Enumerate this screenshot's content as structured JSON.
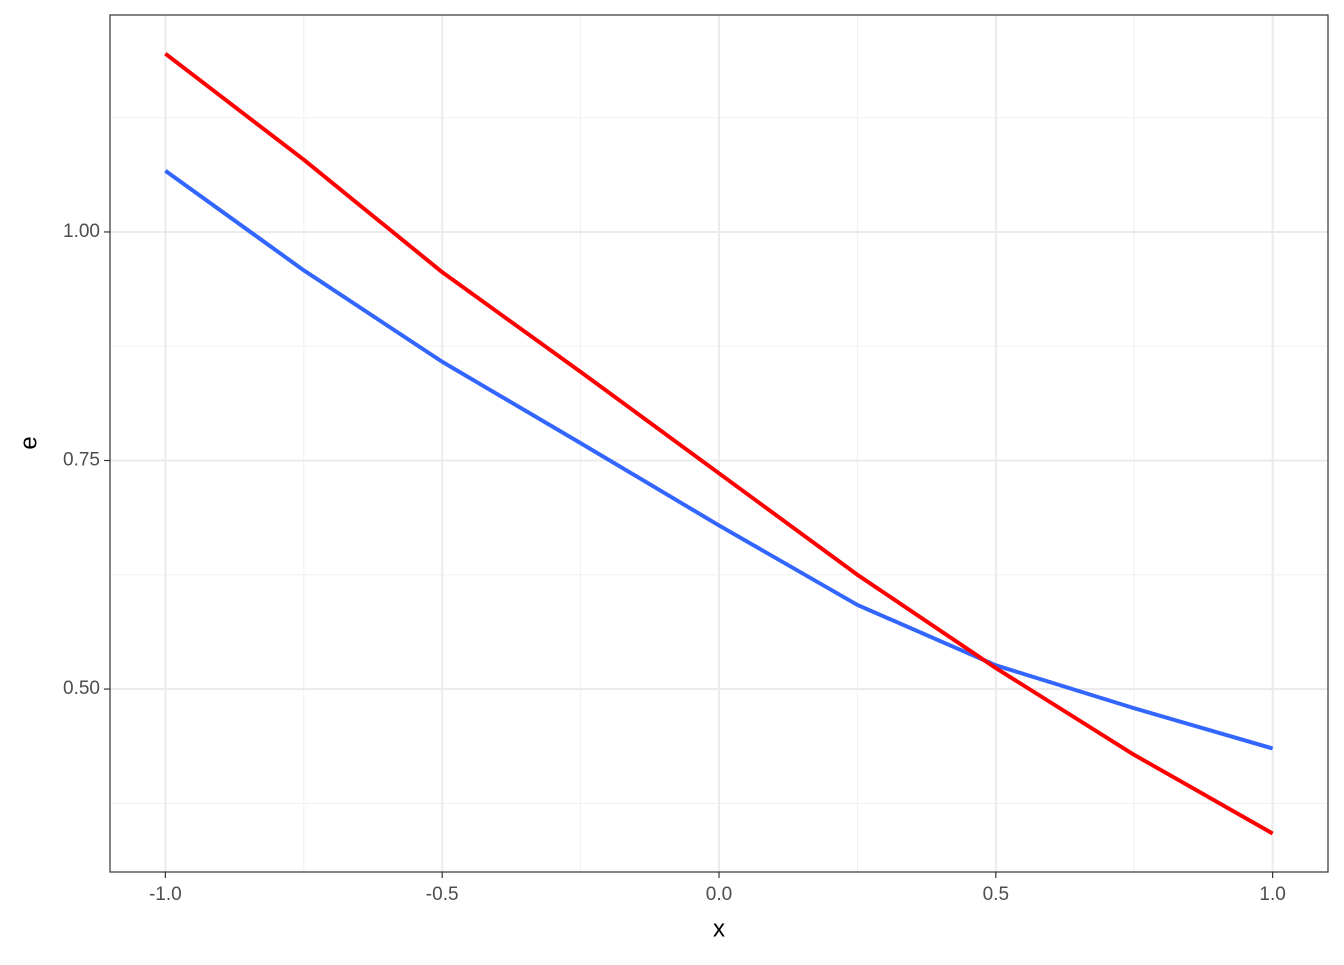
{
  "chart_data": {
    "type": "line",
    "x_label": "x",
    "y_label": "e",
    "x": [
      -1,
      -0.75,
      -0.5,
      -0.25,
      0,
      0.25,
      0.5,
      0.75,
      1
    ],
    "series": [
      {
        "color": "#3366ff",
        "values": [
          1.067,
          0.958,
          0.858,
          0.769,
          0.679,
          0.592,
          0.526,
          0.479,
          0.435
        ]
      },
      {
        "color": "#ff0000",
        "values": [
          1.195,
          1.079,
          0.956,
          0.847,
          0.736,
          0.625,
          0.523,
          0.428,
          0.342
        ]
      }
    ],
    "xlim": [
      -1.1,
      1.1
    ],
    "xticks": [
      {
        "value": -1,
        "label": "-1.0"
      },
      {
        "value": -0.5,
        "label": "-0.5"
      },
      {
        "value": 0,
        "label": "0.0"
      },
      0.5,
      {
        "value": 1,
        "label": "1.0"
      }
    ],
    "x_minor_gridlines": [
      -0.75,
      -0.25,
      0.25,
      0.75
    ],
    "ylim": [
      0.2999,
      1.2373
    ],
    "yticks": [
      {
        "value": 0.5,
        "label": "0.50"
      },
      0.75,
      {
        "value": 1,
        "label": "1.00"
      }
    ],
    "y_minor_gridlines": [
      0.375,
      0.625,
      0.875,
      1.125
    ],
    "grid": true
  }
}
